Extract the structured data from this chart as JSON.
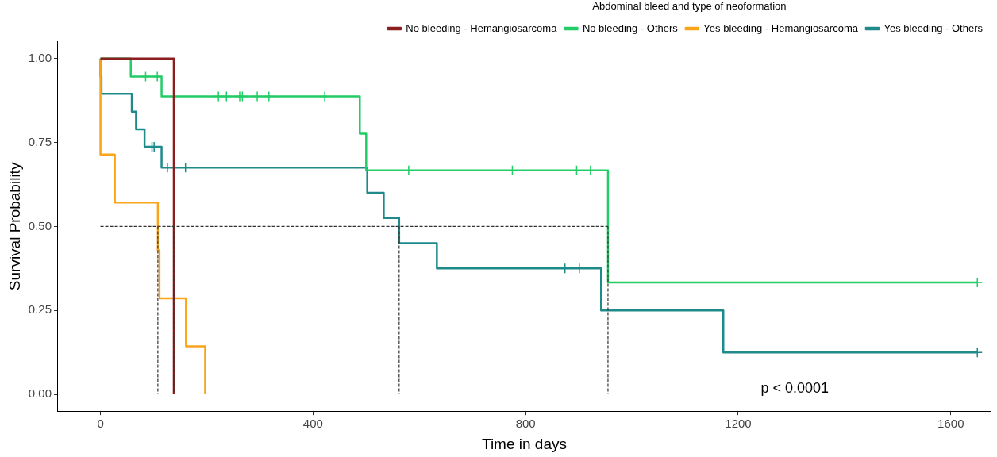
{
  "chart_data": {
    "type": "step",
    "xlabel": "Time in days",
    "ylabel": "Survival Probability",
    "legend_title": "Abdominal bleed and type of neoformation",
    "legend": "top",
    "grid": false,
    "xlim": [
      -80,
      1675
    ],
    "xticks": [
      0,
      400,
      800,
      1200,
      1600
    ],
    "ylim": [
      -0.05,
      1.05
    ],
    "yticks": [
      {
        "value": 0,
        "label": "0.00"
      },
      {
        "value": 0.25,
        "label": "0.25"
      },
      {
        "value": 0.5,
        "label": "0.50"
      },
      {
        "value": 0.75,
        "label": "0.75"
      },
      {
        "value": 1,
        "label": "1.00"
      }
    ],
    "series": [
      {
        "type": "line",
        "line_style": "dashed",
        "color": "#333333",
        "x": [
          0,
          955
        ],
        "values": [
          0.5,
          0.5
        ]
      },
      {
        "type": "line",
        "line_style": "dashed",
        "color": "#333333",
        "x": [
          108,
          108
        ],
        "values": [
          0.5,
          0
        ]
      },
      {
        "type": "line",
        "line_style": "dashed",
        "color": "#333333",
        "x": [
          138,
          138
        ],
        "values": [
          0.5,
          0
        ]
      },
      {
        "type": "line",
        "line_style": "dashed",
        "color": "#333333",
        "x": [
          562,
          562
        ],
        "values": [
          0.5,
          0
        ]
      },
      {
        "type": "line",
        "line_style": "dashed",
        "color": "#333333",
        "x": [
          955,
          955
        ],
        "values": [
          0.5,
          0
        ]
      },
      {
        "name": "No bleeding - Hemangiosarcoma",
        "color": "#8b1e1e",
        "x": [
          0,
          138
        ],
        "values": [
          1,
          0
        ]
      },
      {
        "name": "No bleeding - Others",
        "color": "#22cc66",
        "x": [
          0,
          57,
          115,
          488,
          500,
          955,
          1650
        ],
        "values": [
          1,
          0.946,
          0.887,
          0.776,
          0.667,
          0.333,
          0.333
        ]
      },
      {
        "name": "Yes bleeding - Hemangiosarcoma",
        "color": "#f8a51c",
        "x": [
          0,
          0,
          0,
          27,
          108,
          111,
          161,
          197
        ],
        "values": [
          1,
          0.857,
          0.714,
          0.571,
          0.429,
          0.286,
          0.143,
          0
        ]
      },
      {
        "name": "Yes bleeding - Others",
        "color": "#1f8a8a",
        "x": [
          0,
          0,
          2,
          59,
          67,
          83,
          115,
          502,
          533,
          562,
          633,
          942,
          1172,
          1650
        ],
        "values": [
          1,
          0.947,
          0.895,
          0.842,
          0.789,
          0.737,
          0.675,
          0.6,
          0.525,
          0.45,
          0.375,
          0.25,
          0.125,
          0.125
        ]
      },
      {
        "type": "scatter",
        "marker": "cross",
        "color": "#22cc66",
        "x": [
          85,
          107,
          222,
          237,
          262,
          267,
          295,
          317,
          422,
          580,
          775,
          896,
          922,
          1650
        ],
        "values": [
          0.946,
          0.946,
          0.887,
          0.887,
          0.887,
          0.887,
          0.887,
          0.887,
          0.887,
          0.667,
          0.667,
          0.667,
          0.667,
          0.333
        ]
      },
      {
        "type": "scatter",
        "marker": "cross",
        "color": "#1f8a8a",
        "x": [
          97,
          101,
          126,
          160,
          874,
          901,
          1650
        ],
        "values": [
          0.737,
          0.737,
          0.675,
          0.675,
          0.375,
          0.375,
          0.125
        ]
      }
    ],
    "annotations": [
      "p < 0.0001"
    ]
  }
}
